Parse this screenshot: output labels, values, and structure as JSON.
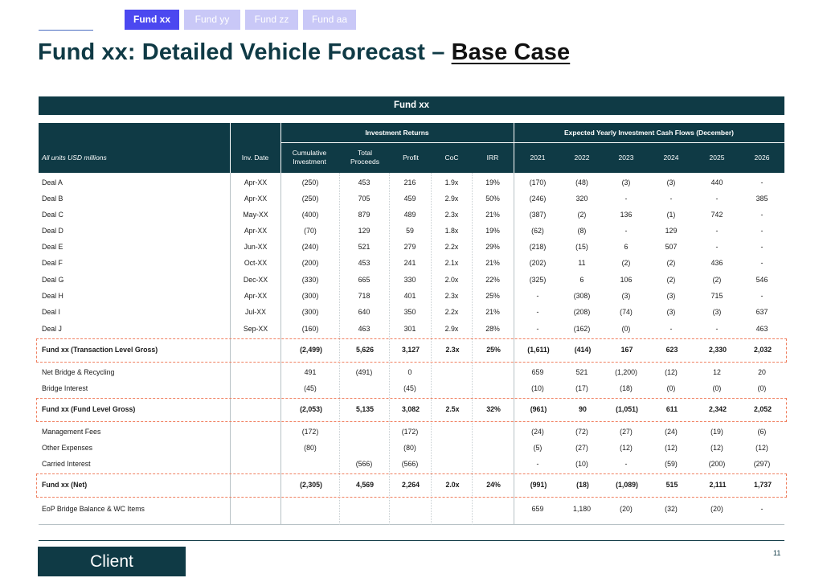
{
  "tabs": [
    "Fund xx",
    "Fund yy",
    "Fund zz",
    "Fund aa"
  ],
  "title": {
    "main": "Fund xx: Detailed Vehicle Forecast – ",
    "underlined": "Base Case"
  },
  "banner": "Fund xx",
  "header": {
    "units": "All units USD millions",
    "inv_date": "Inv. Date",
    "group_returns": "Investment Returns",
    "group_cashflows": "Expected Yearly Investment Cash Flows (December)",
    "columns": [
      "Cumulative Investment",
      "Total Proceeds",
      "Profit",
      "CoC",
      "IRR"
    ],
    "years": [
      "2021",
      "2022",
      "2023",
      "2024",
      "2025",
      "2026"
    ]
  },
  "rows": [
    {
      "name": "Deal A",
      "vals": [
        "Apr-XX",
        "(250)",
        "453",
        "216",
        "1.9x",
        "19%",
        "(170)",
        "(48)",
        "(3)",
        "(3)",
        "440",
        "-"
      ]
    },
    {
      "name": "Deal B",
      "vals": [
        "Apr-XX",
        "(250)",
        "705",
        "459",
        "2.9x",
        "50%",
        "(246)",
        "320",
        "-",
        "-",
        "-",
        "385"
      ]
    },
    {
      "name": "Deal C",
      "vals": [
        "May-XX",
        "(400)",
        "879",
        "489",
        "2.3x",
        "21%",
        "(387)",
        "(2)",
        "136",
        "(1)",
        "742",
        "-"
      ]
    },
    {
      "name": "Deal D",
      "vals": [
        "Apr-XX",
        "(70)",
        "129",
        "59",
        "1.8x",
        "19%",
        "(62)",
        "(8)",
        "-",
        "129",
        "-",
        "-"
      ]
    },
    {
      "name": "Deal E",
      "vals": [
        "Jun-XX",
        "(240)",
        "521",
        "279",
        "2.2x",
        "29%",
        "(218)",
        "(15)",
        "6",
        "507",
        "-",
        "-"
      ]
    },
    {
      "name": "Deal F",
      "vals": [
        "Oct-XX",
        "(200)",
        "453",
        "241",
        "2.1x",
        "21%",
        "(202)",
        "11",
        "(2)",
        "(2)",
        "436",
        "-"
      ]
    },
    {
      "name": "Deal G",
      "vals": [
        "Dec-XX",
        "(330)",
        "665",
        "330",
        "2.0x",
        "22%",
        "(325)",
        "6",
        "106",
        "(2)",
        "(2)",
        "546"
      ]
    },
    {
      "name": "Deal H",
      "vals": [
        "Apr-XX",
        "(300)",
        "718",
        "401",
        "2.3x",
        "25%",
        "-",
        "(308)",
        "(3)",
        "(3)",
        "715",
        "-"
      ]
    },
    {
      "name": "Deal I",
      "vals": [
        "Jul-XX",
        "(300)",
        "640",
        "350",
        "2.2x",
        "21%",
        "-",
        "(208)",
        "(74)",
        "(3)",
        "(3)",
        "637"
      ]
    },
    {
      "name": "Deal J",
      "vals": [
        "Sep-XX",
        "(160)",
        "463",
        "301",
        "2.9x",
        "28%",
        "-",
        "(162)",
        "(0)",
        "-",
        "-",
        "463"
      ]
    },
    {
      "name": "Fund xx (Transaction Level Gross)",
      "total": true,
      "vals": [
        "",
        "(2,499)",
        "5,626",
        "3,127",
        "2.3x",
        "25%",
        "(1,611)",
        "(414)",
        "167",
        "623",
        "2,330",
        "2,032"
      ]
    },
    {
      "name": "Net Bridge & Recycling",
      "vals": [
        "",
        "491",
        "(491)",
        "0",
        "",
        "",
        "659",
        "521",
        "(1,200)",
        "(12)",
        "12",
        "20"
      ]
    },
    {
      "name": "Bridge Interest",
      "vals": [
        "",
        "(45)",
        "",
        "(45)",
        "",
        "",
        "(10)",
        "(17)",
        "(18)",
        "(0)",
        "(0)",
        "(0)"
      ]
    },
    {
      "name": "Fund xx (Fund Level Gross)",
      "total": true,
      "vals": [
        "",
        "(2,053)",
        "5,135",
        "3,082",
        "2.5x",
        "32%",
        "(961)",
        "90",
        "(1,051)",
        "611",
        "2,342",
        "2,052"
      ]
    },
    {
      "name": "Management Fees",
      "vals": [
        "",
        "(172)",
        "",
        "(172)",
        "",
        "",
        "(24)",
        "(72)",
        "(27)",
        "(24)",
        "(19)",
        "(6)"
      ]
    },
    {
      "name": "Other Expenses",
      "vals": [
        "",
        "(80)",
        "",
        "(80)",
        "",
        "",
        "(5)",
        "(27)",
        "(12)",
        "(12)",
        "(12)",
        "(12)"
      ]
    },
    {
      "name": "Carried Interest",
      "vals": [
        "",
        "",
        "(566)",
        "(566)",
        "",
        "",
        "-",
        "(10)",
        "-",
        "(59)",
        "(200)",
        "(297)"
      ]
    },
    {
      "name": "Fund xx (Net)",
      "total": true,
      "vals": [
        "",
        "(2,305)",
        "4,569",
        "2,264",
        "2.0x",
        "24%",
        "(991)",
        "(18)",
        "(1,089)",
        "515",
        "2,111",
        "1,737"
      ]
    },
    {
      "name": "EoP Bridge Balance & WC Items",
      "vals": [
        "",
        "",
        "",
        "",
        "",
        "",
        "659",
        "1,180",
        "(20)",
        "(32)",
        "(20)",
        "-"
      ]
    }
  ],
  "footer": {
    "client": "Client",
    "page": "11"
  },
  "colors": {
    "dark_teal": "#0f3a45",
    "tab_active": "#4b48f0",
    "tab_inactive": "#c9c8f7",
    "total_border": "#f08060"
  }
}
